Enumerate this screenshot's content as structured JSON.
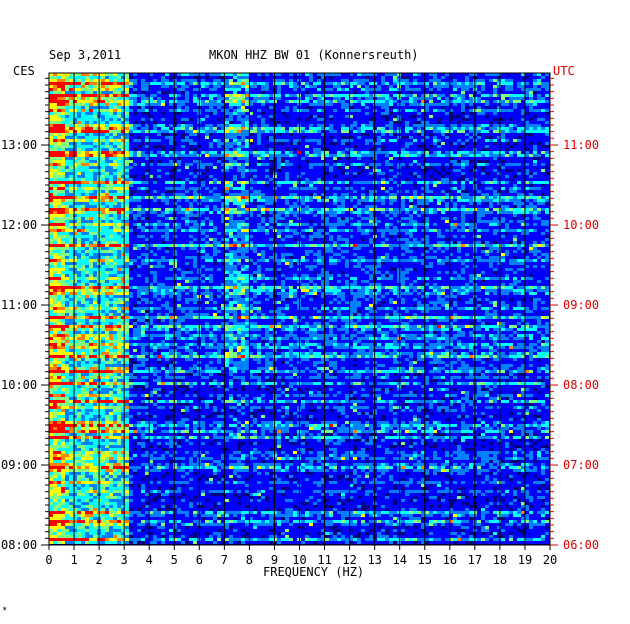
{
  "header": {
    "date": "Sep 3,2011",
    "station": "MKON HHZ BW 01 (Konnersreuth)"
  },
  "left_timezone": "CES",
  "right_timezone": "UTC",
  "colors": {
    "background": "#000080",
    "grid": "#000000",
    "left_labels": "#000000",
    "right_labels": "#dd0000"
  },
  "chart_data": {
    "type": "heatmap",
    "title": "MKON HHZ BW 01 (Konnersreuth)",
    "xlabel": "FREQUENCY (HZ)",
    "ylabel": "",
    "xlim": [
      0,
      20
    ],
    "x_ticks": [
      "0",
      "1",
      "2",
      "3",
      "4",
      "5",
      "6",
      "7",
      "8",
      "9",
      "10",
      "11",
      "12",
      "13",
      "14",
      "15",
      "16",
      "17",
      "18",
      "19",
      "20"
    ],
    "y_ticks_left": [
      "13:00",
      "12:00",
      "11:00",
      "10:00",
      "09:00",
      "08:00"
    ],
    "y_ticks_right": [
      "11:00",
      "10:00",
      "09:00",
      "08:00",
      "07:00",
      "06:00"
    ],
    "y_range_local": [
      "08:00",
      "13:45"
    ],
    "colormap": [
      "#000080",
      "#0000ff",
      "#0080ff",
      "#00ffff",
      "#80ff80",
      "#ffff00",
      "#ff8000",
      "#ff0000"
    ],
    "grid": true
  },
  "footnote": "*"
}
